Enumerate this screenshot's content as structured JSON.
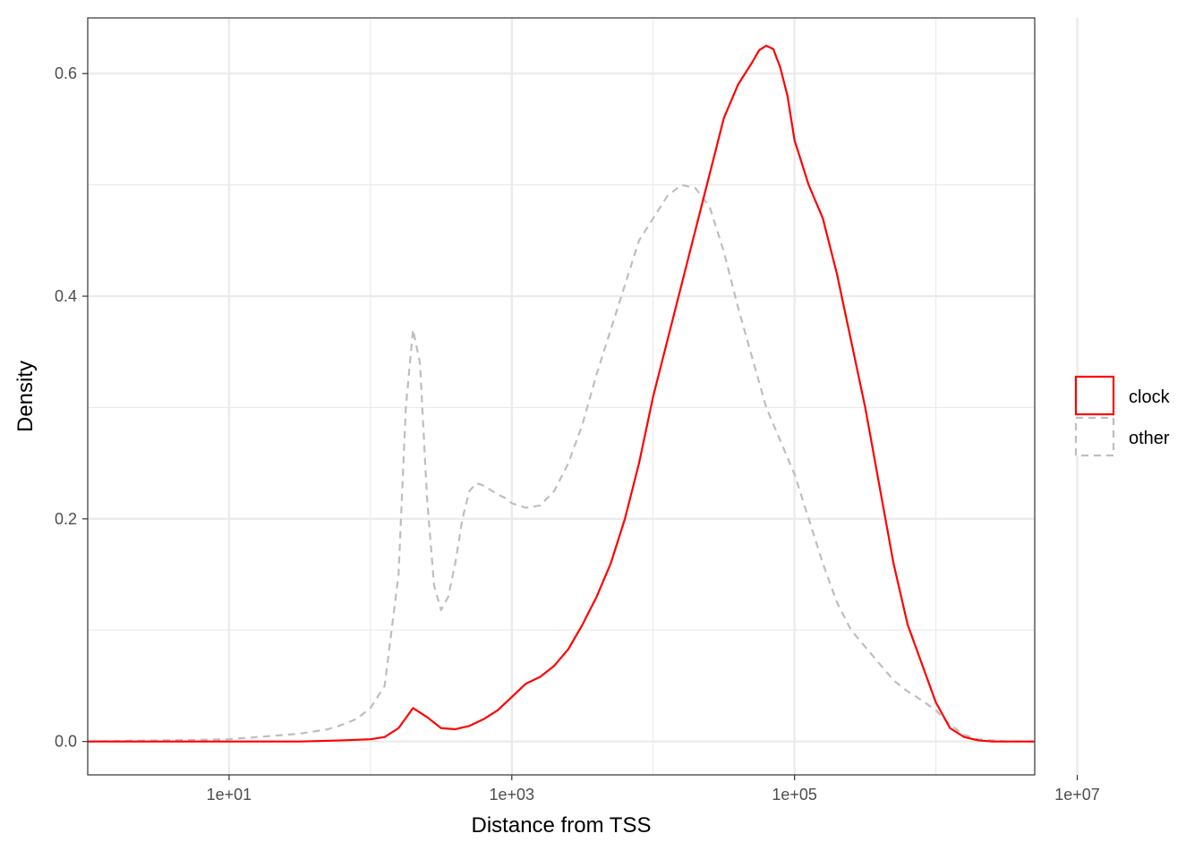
{
  "chart_data": {
    "type": "line",
    "title": "",
    "xlabel": "Distance from TSS",
    "ylabel": "Density",
    "x_scale": "log10",
    "xlim": [
      1,
      5000000
    ],
    "ylim": [
      -0.03,
      0.65
    ],
    "x_ticks": [
      10,
      1000,
      100000,
      10000000
    ],
    "x_tick_labels": [
      "1e+01",
      "1e+03",
      "1e+05",
      "1e+07"
    ],
    "y_ticks": [
      0.0,
      0.2,
      0.4,
      0.6
    ],
    "y_tick_labels": [
      "0.0",
      "0.2",
      "0.4",
      "0.6"
    ],
    "grid": true,
    "legend_position": "right",
    "series": [
      {
        "name": "clock",
        "color": "#ff0000",
        "linestyle": "solid",
        "x": [
          1,
          10,
          31.6,
          63,
          100,
          126,
          158,
          200,
          251,
          316,
          398,
          501,
          631,
          794,
          1000,
          1259,
          1585,
          1995,
          2512,
          3162,
          3981,
          5012,
          6310,
          7943,
          10000,
          12589,
          15849,
          19953,
          25119,
          31623,
          39811,
          50119,
          56234,
          63096,
          70795,
          79433,
          89125,
          100000,
          125893,
          158489,
          199526,
          251189,
          316228,
          398107,
          501187,
          630957,
          794328,
          1000000,
          1258925,
          1584893,
          1995262,
          2511886,
          3162278,
          5000000
        ],
        "y": [
          0.0,
          0.0,
          0.0,
          0.001,
          0.002,
          0.004,
          0.012,
          0.03,
          0.022,
          0.012,
          0.011,
          0.014,
          0.02,
          0.028,
          0.04,
          0.052,
          0.058,
          0.068,
          0.083,
          0.105,
          0.13,
          0.16,
          0.2,
          0.25,
          0.31,
          0.36,
          0.41,
          0.46,
          0.51,
          0.56,
          0.59,
          0.61,
          0.621,
          0.625,
          0.622,
          0.605,
          0.58,
          0.54,
          0.5,
          0.47,
          0.42,
          0.36,
          0.3,
          0.23,
          0.16,
          0.105,
          0.07,
          0.035,
          0.012,
          0.004,
          0.001,
          0.0,
          0.0,
          0.0
        ]
      },
      {
        "name": "other",
        "color": "#bebebe",
        "linestyle": "dashed",
        "x": [
          1,
          10,
          31.6,
          50,
          63,
          79,
          100,
          126,
          158,
          178,
          200,
          224,
          251,
          282,
          316,
          355,
          398,
          447,
          501,
          562,
          631,
          708,
          794,
          891,
          1000,
          1259,
          1585,
          1995,
          2512,
          3162,
          3981,
          5012,
          6310,
          7943,
          10000,
          12589,
          15849,
          19953,
          25119,
          31623,
          39811,
          50119,
          63096,
          79433,
          100000,
          125893,
          158489,
          199526,
          251189,
          316228,
          398107,
          501187,
          630957,
          794328,
          1000000,
          1258925,
          1584893,
          1995262,
          2511886,
          3162278,
          5000000
        ],
        "y": [
          0.0,
          0.002,
          0.007,
          0.011,
          0.015,
          0.02,
          0.03,
          0.05,
          0.15,
          0.3,
          0.37,
          0.34,
          0.22,
          0.14,
          0.118,
          0.13,
          0.16,
          0.2,
          0.225,
          0.232,
          0.23,
          0.226,
          0.222,
          0.219,
          0.214,
          0.21,
          0.212,
          0.225,
          0.25,
          0.285,
          0.33,
          0.37,
          0.41,
          0.45,
          0.47,
          0.49,
          0.5,
          0.497,
          0.48,
          0.44,
          0.39,
          0.345,
          0.3,
          0.27,
          0.24,
          0.2,
          0.16,
          0.125,
          0.1,
          0.085,
          0.07,
          0.055,
          0.045,
          0.037,
          0.028,
          0.015,
          0.006,
          0.002,
          0.001,
          0.0,
          0.0
        ]
      }
    ]
  }
}
